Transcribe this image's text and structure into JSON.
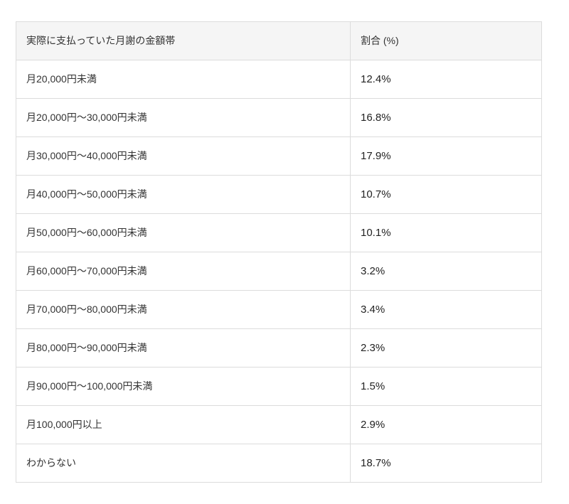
{
  "table": {
    "headers": [
      "実際に支払っていた月謝の金額帯",
      "割合 (%)"
    ],
    "rows": [
      {
        "label": "月20,000円未満",
        "value": "12.4%"
      },
      {
        "label": "月20,000円〜30,000円未満",
        "value": "16.8%"
      },
      {
        "label": "月30,000円〜40,000円未満",
        "value": "17.9%"
      },
      {
        "label": "月40,000円〜50,000円未満",
        "value": "10.7%"
      },
      {
        "label": "月50,000円〜60,000円未満",
        "value": "10.1%"
      },
      {
        "label": "月60,000円〜70,000円未満",
        "value": "3.2%"
      },
      {
        "label": "月70,000円〜80,000円未満",
        "value": "3.4%"
      },
      {
        "label": "月80,000円〜90,000円未満",
        "value": "2.3%"
      },
      {
        "label": "月90,000円〜100,000円未満",
        "value": "1.5%"
      },
      {
        "label": "月100,000円以上",
        "value": "2.9%"
      },
      {
        "label": "わからない",
        "value": "18.7%"
      }
    ]
  },
  "chart_data": {
    "type": "table",
    "title": "実際に支払っていた月謝の金額帯",
    "columns": [
      "実際に支払っていた月謝の金額帯",
      "割合 (%)"
    ],
    "categories": [
      "月20,000円未満",
      "月20,000円〜30,000円未満",
      "月30,000円〜40,000円未満",
      "月40,000円〜50,000円未満",
      "月50,000円〜60,000円未満",
      "月60,000円〜70,000円未満",
      "月70,000円〜80,000円未満",
      "月80,000円〜90,000円未満",
      "月90,000円〜100,000円未満",
      "月100,000円以上",
      "わからない"
    ],
    "values": [
      12.4,
      16.8,
      17.9,
      10.7,
      10.1,
      3.2,
      3.4,
      2.3,
      1.5,
      2.9,
      18.7
    ],
    "unit": "%"
  },
  "colors": {
    "header_bg": "#f5f5f5",
    "border": "#dcdcdc",
    "text": "#333333",
    "page_bg": "#ffffff"
  }
}
